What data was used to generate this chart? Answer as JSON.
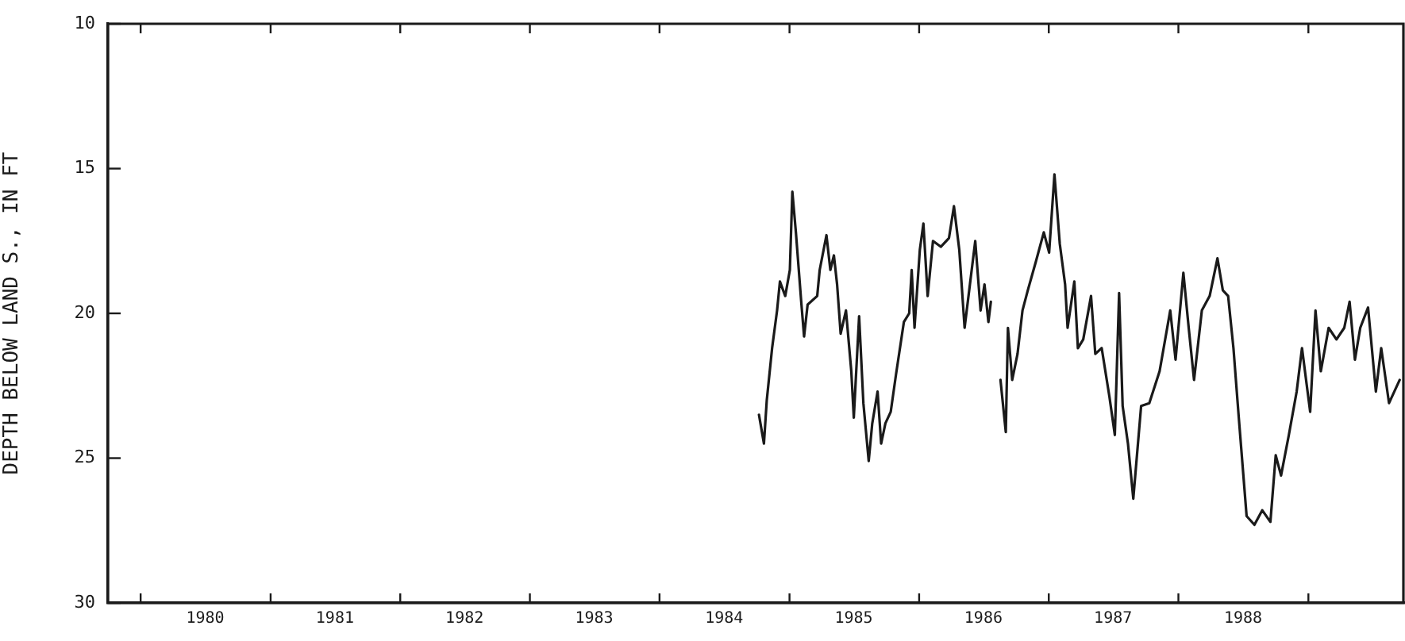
{
  "chart_data": {
    "type": "line",
    "ylabel": "DEPTH BELOW LAND S., IN FT",
    "x": [
      "1984-10-07",
      "1984-10-21",
      "1984-10-29",
      "1984-11-13",
      "1984-11-27",
      "1984-12-05",
      "1984-12-20",
      "1985-01-02",
      "1985-01-09",
      "1985-01-19",
      "1985-02-03",
      "1985-02-11",
      "1985-02-21",
      "1985-03-20",
      "1985-03-27",
      "1985-04-15",
      "1985-04-26",
      "1985-05-06",
      "1985-05-15",
      "1985-05-25",
      "1985-06-09",
      "1985-06-24",
      "1985-07-01",
      "1985-07-16",
      "1985-07-28",
      "1985-08-12",
      "1985-08-22",
      "1985-09-06",
      "1985-09-16",
      "1985-09-28",
      "1985-10-13",
      "1985-10-28",
      "1985-11-19",
      "1985-12-04",
      "1985-12-11",
      "1985-12-19",
      "1986-01-03",
      "1986-01-13",
      "1986-01-25",
      "1986-02-09",
      "1986-03-03",
      "1986-03-26",
      "1986-04-09",
      "1986-04-24",
      "1986-05-09",
      "1986-05-24",
      "1986-06-08",
      "1986-06-23",
      "1986-07-04",
      "1986-07-15",
      "1986-07-22",
      "1986-08-01",
      "1986-08-18",
      "1986-09-02",
      "1986-09-08",
      "1986-09-20",
      "1986-10-05",
      "1986-10-19",
      "1986-11-03",
      "1986-11-26",
      "1986-12-18",
      "1987-01-02",
      "1987-01-17",
      "1987-02-01",
      "1987-02-16",
      "1987-02-23",
      "1987-03-14",
      "1987-03-24",
      "1987-04-08",
      "1987-04-30",
      "1987-05-12",
      "1987-05-30",
      "1987-06-21",
      "1987-07-06",
      "1987-07-18",
      "1987-07-28",
      "1987-08-12",
      "1987-08-27",
      "1987-09-18",
      "1987-10-11",
      "1987-11-09",
      "1987-12-09",
      "1987-12-24",
      "1988-01-15",
      "1988-01-30",
      "1988-02-14",
      "1988-03-07",
      "1988-03-29",
      "1988-04-20",
      "1988-05-05",
      "1988-05-20",
      "1988-06-04",
      "1988-06-19",
      "1988-07-11",
      "1988-08-02",
      "1988-08-24",
      "1988-09-16",
      "1988-10-01",
      "1988-10-16",
      "1988-11-07",
      "1988-11-29",
      "1988-12-14",
      "1989-01-06",
      "1989-01-21",
      "1989-02-05",
      "1989-02-27",
      "1989-03-21",
      "1989-04-12",
      "1989-04-27",
      "1989-05-12",
      "1989-05-27",
      "1989-06-18",
      "1989-07-10",
      "1989-07-25",
      "1989-08-16",
      "1989-09-15"
    ],
    "series": [
      {
        "color": "#1a1a1a",
        "values": [
          23.5,
          24.5,
          23.0,
          21.2,
          19.9,
          18.9,
          19.4,
          18.5,
          15.8,
          17.2,
          19.6,
          20.8,
          19.7,
          19.4,
          18.5,
          17.3,
          18.5,
          18.0,
          19.0,
          20.7,
          19.9,
          22.0,
          23.6,
          20.1,
          23.1,
          25.1,
          23.8,
          22.7,
          24.5,
          23.8,
          23.4,
          22.1,
          20.3,
          20.0,
          18.5,
          20.5,
          17.8,
          16.9,
          19.4,
          17.5,
          17.7,
          17.4,
          16.3,
          17.8,
          20.5,
          19.0,
          17.5,
          19.9,
          19.0,
          20.3,
          19.6,
          null,
          22.3,
          24.1,
          20.5,
          22.3,
          21.4,
          19.9,
          19.2,
          18.2,
          17.2,
          17.9,
          15.2,
          17.6,
          19.0,
          20.5,
          18.9,
          21.2,
          20.9,
          19.4,
          21.4,
          21.2,
          22.9,
          24.2,
          19.3,
          23.2,
          24.5,
          26.4,
          23.2,
          23.1,
          22.0,
          19.9,
          21.6,
          18.6,
          20.5,
          22.3,
          19.9,
          19.4,
          18.1,
          19.2,
          19.4,
          21.2,
          23.6,
          27.0,
          27.3,
          26.8,
          27.2,
          24.9,
          25.6,
          24.2,
          22.7,
          21.2,
          23.4,
          19.9,
          22.0,
          20.5,
          20.9,
          20.5,
          19.6,
          21.6,
          20.5,
          19.8,
          22.7,
          21.2,
          23.1,
          22.3
        ]
      }
    ],
    "xlim": [
      "1979-10-01",
      "1989-09-30"
    ],
    "xticks": [
      {
        "value": "1980-01-01",
        "label": null
      },
      {
        "value": "1980-07-01",
        "label": "1980"
      },
      {
        "value": "1981-01-01",
        "label": null
      },
      {
        "value": "1981-07-01",
        "label": "1981"
      },
      {
        "value": "1982-01-01",
        "label": null
      },
      {
        "value": "1982-07-01",
        "label": "1982"
      },
      {
        "value": "1983-01-01",
        "label": null
      },
      {
        "value": "1983-07-01",
        "label": "1983"
      },
      {
        "value": "1984-01-01",
        "label": null
      },
      {
        "value": "1984-07-01",
        "label": "1984"
      },
      {
        "value": "1985-01-01",
        "label": null
      },
      {
        "value": "1985-07-01",
        "label": "1985"
      },
      {
        "value": "1986-01-01",
        "label": null
      },
      {
        "value": "1986-07-01",
        "label": "1986"
      },
      {
        "value": "1987-01-01",
        "label": null
      },
      {
        "value": "1987-07-01",
        "label": "1987"
      },
      {
        "value": "1988-01-01",
        "label": null
      },
      {
        "value": "1988-07-01",
        "label": "1988"
      },
      {
        "value": "1989-01-01",
        "label": null
      }
    ],
    "ylim": [
      30,
      10
    ],
    "yticks": [
      10,
      15,
      20,
      25,
      30
    ],
    "grid": false,
    "legend": false,
    "marker": "none",
    "line_style": "solid"
  }
}
